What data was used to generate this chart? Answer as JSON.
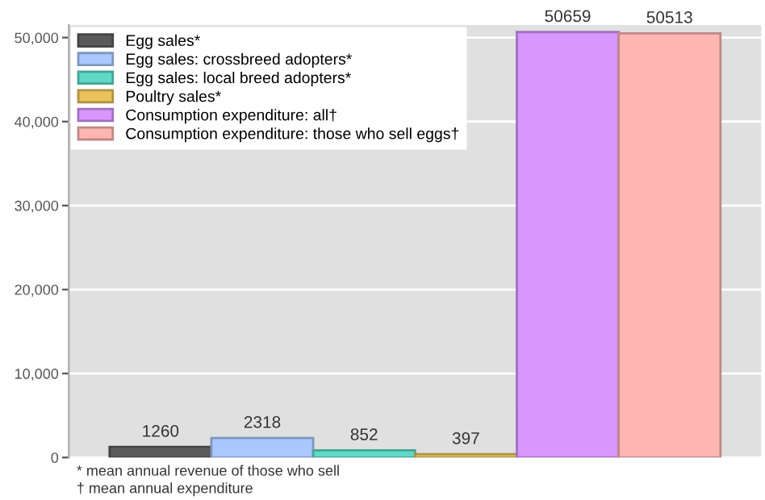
{
  "chart_data": {
    "type": "bar",
    "categories": [
      null,
      null,
      null,
      null,
      null,
      null
    ],
    "series": [
      {
        "name": "Egg sales*",
        "color": "#5a5a5a",
        "values": [
          1260,
          null,
          null,
          null,
          null,
          null
        ]
      },
      {
        "name": "Egg sales: crossbreed adopters*",
        "color": "#aac8ff",
        "values": [
          null,
          2318,
          null,
          null,
          null,
          null
        ]
      },
      {
        "name": "Egg sales: local breed adopters*",
        "color": "#5fd9c6",
        "values": [
          null,
          null,
          852,
          null,
          null,
          null
        ]
      },
      {
        "name": "Poultry sales*",
        "color": "#e8c25a",
        "values": [
          null,
          null,
          null,
          397,
          null,
          null
        ]
      },
      {
        "name": "Consumption expenditure: all†",
        "color": "#d896ff",
        "values": [
          null,
          null,
          null,
          null,
          50659,
          null
        ]
      },
      {
        "name": "Consumption expenditure: those who sell eggs†",
        "color": "#ffb6b3",
        "values": [
          null,
          null,
          null,
          null,
          null,
          50513
        ]
      }
    ],
    "ylim": [
      0,
      51500
    ],
    "yticks": [
      {
        "value": 0,
        "label": "0"
      },
      {
        "value": 10000,
        "label": "10,000"
      },
      {
        "value": 20000,
        "label": "20,000"
      },
      {
        "value": 30000,
        "label": "30,000"
      },
      {
        "value": 40000,
        "label": "40,000"
      },
      {
        "value": 50000,
        "label": "50,000"
      }
    ],
    "grid": "y",
    "legend": "top left",
    "data_labels": true,
    "annotations": [
      "* mean annual revenue of those who sell",
      "† mean annual expenditure"
    ]
  }
}
